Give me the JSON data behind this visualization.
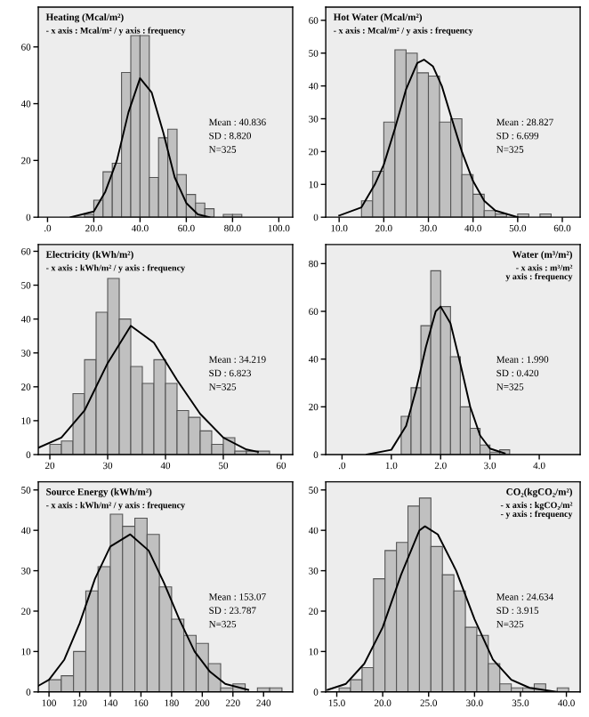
{
  "chart_data": [
    {
      "type": "histogram",
      "title": "Heating (Mcal/m²)",
      "subtitle": "- x axis : Mcal/m² / y axis : frequency",
      "annotations": [
        "Mean : 40.836",
        "SD : 8.820",
        "N=325"
      ],
      "color": "#c0c0c0",
      "bins": [
        16,
        20,
        24,
        28,
        32,
        36,
        40,
        44,
        48,
        52,
        56,
        60,
        64,
        68,
        72,
        76,
        80,
        84
      ],
      "values": [
        1,
        6,
        16,
        19,
        51,
        64,
        64,
        14,
        28,
        31,
        15,
        8,
        5,
        3,
        0,
        1,
        1
      ],
      "series": [
        {
          "type": "line",
          "color": "#000000",
          "x": [
            10,
            20,
            25,
            30,
            35,
            40,
            45,
            50,
            55,
            60,
            65,
            70
          ],
          "values": [
            0,
            2,
            9,
            20,
            37,
            49,
            44,
            30,
            14,
            5,
            1,
            0
          ]
        }
      ],
      "xlim": [
        -4,
        106
      ],
      "xticks": [
        {
          "value": 0,
          "label": ".0"
        },
        {
          "value": 20,
          "label": "20.0"
        },
        {
          "value": 40,
          "label": "40.0"
        },
        {
          "value": 60,
          "label": "60.0"
        },
        {
          "value": 80,
          "label": "80.0"
        },
        {
          "value": 100,
          "label": "100.0"
        }
      ],
      "ylim": [
        0,
        74
      ],
      "yticks": [
        0,
        20,
        40,
        60
      ]
    },
    {
      "type": "histogram",
      "title": "Hot Water (Mcal/m²)",
      "subtitle": "- x axis : Mcal/m² / y axis : frequency",
      "annotations": [
        "Mean : 28.827",
        "SD : 6.699",
        "N=325"
      ],
      "color": "#c0c0c0",
      "bins": [
        15,
        17.5,
        20,
        22.5,
        25,
        27.5,
        30,
        32.5,
        35,
        37.5,
        40,
        42.5,
        45,
        47.5,
        50,
        52.5,
        55,
        57.5
      ],
      "values": [
        5,
        14,
        29,
        51,
        50,
        44,
        43,
        29,
        30,
        13,
        7,
        2,
        1,
        0,
        1,
        0,
        1
      ],
      "series": [
        {
          "type": "line",
          "color": "#000000",
          "x": [
            10,
            15,
            18,
            20,
            22.5,
            25,
            27.5,
            29,
            31,
            33,
            35,
            37.5,
            40,
            42.5,
            45,
            50
          ],
          "values": [
            0.5,
            3,
            10,
            16,
            27,
            39,
            47,
            48,
            46,
            40,
            31,
            20,
            11,
            5,
            2,
            0
          ]
        }
      ],
      "xlim": [
        7,
        64
      ],
      "xticks": [
        {
          "value": 10,
          "label": "10.0"
        },
        {
          "value": 20,
          "label": "20.0"
        },
        {
          "value": 30,
          "label": "30.0"
        },
        {
          "value": 40,
          "label": "40.0"
        },
        {
          "value": 50,
          "label": "50.0"
        },
        {
          "value": 60,
          "label": "60.0"
        }
      ],
      "ylim": [
        0,
        64
      ],
      "yticks": [
        0,
        10,
        20,
        30,
        40,
        50,
        60
      ]
    },
    {
      "type": "histogram",
      "title": "Electricity (kWh/m²)",
      "subtitle": "- x axis : kWh/m² / y axis : frequency",
      "annotations": [
        "Mean : 34.219",
        "SD : 6.823",
        "N=325"
      ],
      "color": "#c0c0c0",
      "bins": [
        20,
        22,
        24,
        26,
        28,
        30,
        32,
        34,
        36,
        38,
        40,
        42,
        44,
        46,
        48,
        50,
        52,
        54,
        56,
        58
      ],
      "values": [
        3,
        4,
        18,
        28,
        42,
        52,
        40,
        26,
        21,
        28,
        21,
        13,
        11,
        7,
        3,
        5,
        1,
        1,
        1
      ],
      "series": [
        {
          "type": "line",
          "color": "#000000",
          "x": [
            18,
            22,
            26,
            30,
            34,
            38,
            42,
            46,
            50,
            54,
            56
          ],
          "values": [
            2,
            5,
            13,
            27,
            38,
            33,
            22,
            12,
            5,
            1.5,
            0.8
          ]
        }
      ],
      "xlim": [
        18,
        62
      ],
      "xticks": [
        20,
        30,
        40,
        50,
        60
      ],
      "ylim": [
        0,
        62
      ],
      "yticks": [
        0,
        10,
        20,
        30,
        40,
        50,
        60
      ]
    },
    {
      "type": "histogram",
      "title": "Water (m³/m²)",
      "subtitle": "- x axis : m³/m²\n  y axis : frequency",
      "annotations": [
        "Mean : 1.990",
        "SD : 0.420",
        "N=325"
      ],
      "color": "#c0c0c0",
      "bins": [
        1.2,
        1.4,
        1.6,
        1.8,
        2.0,
        2.2,
        2.4,
        2.6,
        2.8,
        3.0,
        3.2,
        3.4
      ],
      "values": [
        16,
        28,
        54,
        77,
        62,
        41,
        20,
        11,
        4,
        1,
        2
      ],
      "series": [
        {
          "type": "line",
          "color": "#000000",
          "x": [
            0.5,
            1.0,
            1.3,
            1.5,
            1.7,
            1.9,
            2.0,
            2.2,
            2.4,
            2.6,
            2.8,
            3.0,
            3.3
          ],
          "values": [
            0,
            2,
            12,
            27,
            45,
            60,
            62,
            55,
            38,
            20,
            8,
            2.5,
            0.5
          ]
        }
      ],
      "xlim": [
        -0.33,
        4.83
      ],
      "xticks": [
        {
          "value": 0,
          "label": ".0"
        },
        {
          "value": 1,
          "label": "1.0"
        },
        {
          "value": 2,
          "label": "2.0"
        },
        {
          "value": 3,
          "label": "3.0"
        },
        {
          "value": 4,
          "label": "4.0"
        }
      ],
      "ylim": [
        0,
        88
      ],
      "yticks": [
        0,
        20,
        40,
        60,
        80
      ]
    },
    {
      "type": "histogram",
      "title": "Source Energy (kWh/m²)",
      "subtitle": "- x axis : kWh/m² / y axis : frequency",
      "annotations": [
        "Mean : 153.07",
        "SD : 23.787",
        "N=325"
      ],
      "color": "#c0c0c0",
      "bins": [
        100,
        108,
        116,
        124,
        132,
        140,
        148,
        156,
        164,
        172,
        180,
        188,
        196,
        204,
        212,
        220,
        228,
        236,
        244,
        252
      ],
      "values": [
        3,
        4,
        10,
        25,
        31,
        44,
        41,
        43,
        39,
        26,
        18,
        14,
        12,
        7,
        1,
        2,
        0,
        1,
        1
      ],
      "series": [
        {
          "type": "line",
          "color": "#000000",
          "x": [
            93,
            100,
            110,
            120,
            130,
            140,
            153,
            165,
            175,
            185,
            195,
            205,
            215,
            230
          ],
          "values": [
            1.5,
            3,
            8,
            17,
            28,
            36,
            39,
            35,
            27,
            18,
            10,
            5,
            2,
            0.5
          ]
        }
      ],
      "xlim": [
        93,
        259
      ],
      "xticks": [
        100,
        120,
        140,
        160,
        180,
        200,
        220,
        240
      ],
      "ylim": [
        0,
        52
      ],
      "yticks": [
        0,
        10,
        20,
        30,
        40,
        50
      ]
    },
    {
      "type": "histogram",
      "title": "CO₂(kgCO₂/m²)",
      "subtitle": "- x axis : kgCO₂/m²\n- y axis : frequency",
      "annotations": [
        "Mean : 24.634",
        "SD : 3.915",
        "N=325"
      ],
      "color": "#c0c0c0",
      "bins": [
        15.25,
        16.5,
        17.75,
        19.0,
        20.25,
        21.5,
        22.75,
        24.0,
        25.25,
        26.5,
        27.75,
        29.0,
        30.25,
        31.5,
        32.75,
        34.0,
        35.25,
        36.5,
        37.75,
        39.0,
        40.25
      ],
      "values": [
        1,
        3,
        6,
        28,
        35,
        37,
        46,
        48,
        36,
        29,
        25,
        16,
        14,
        7,
        2,
        1,
        1,
        2,
        0,
        1
      ],
      "series": [
        {
          "type": "line",
          "color": "#000000",
          "x": [
            14,
            16,
            18,
            20,
            22,
            24,
            24.6,
            26,
            28,
            30,
            32,
            34,
            36,
            39
          ],
          "values": [
            0.5,
            2,
            7,
            16,
            29,
            40,
            41,
            39,
            30,
            18,
            8,
            3,
            1,
            0
          ]
        }
      ],
      "xlim": [
        13.8,
        41.5
      ],
      "xticks": [
        {
          "value": 15,
          "label": "15.0"
        },
        {
          "value": 20,
          "label": "20.0"
        },
        {
          "value": 25,
          "label": "25.0"
        },
        {
          "value": 30,
          "label": "30.0"
        },
        {
          "value": 35,
          "label": "35.0"
        },
        {
          "value": 40,
          "label": "40.0"
        }
      ],
      "ylim": [
        0,
        52
      ],
      "yticks": [
        0,
        10,
        20,
        30,
        40,
        50
      ]
    }
  ]
}
